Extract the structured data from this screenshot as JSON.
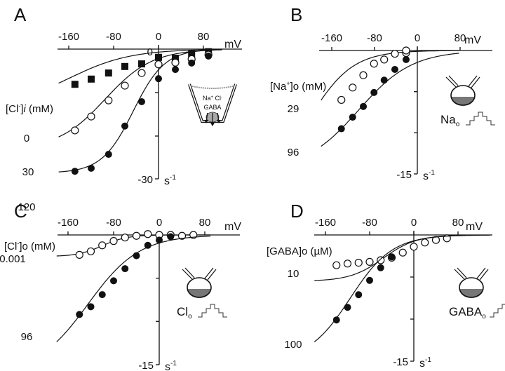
{
  "chart_data": [
    {
      "type": "scatter",
      "panel": "A",
      "title": "A",
      "xlabel": "mV",
      "ylabel": "s-1",
      "xticks": [
        -160,
        -80,
        0,
        80
      ],
      "xtick_labels": [
        "-160",
        "-80",
        "0",
        "80"
      ],
      "ylim": [
        -30,
        0
      ],
      "xlim": [
        -180,
        115
      ],
      "y_top_label": "0",
      "y_bottom_label": "-30",
      "y_unit_label": "s",
      "y_unit_sup": "-1",
      "conc_label": "[Cl",
      "conc_label_sup": "-",
      "conc_label_suffix": "]",
      "conc_label_sub": "i",
      "conc_label_unit": " (mM)",
      "inset": {
        "kind": "oocyte-well",
        "text_line1": "Na",
        "text_line1_sup": "+",
        "text_line1b": " Cl",
        "text_line1b_sup": "-",
        "text_line2": "GABA"
      },
      "series": [
        {
          "name": "0",
          "marker": "filled-square",
          "x": [
            -149,
            -120,
            -89,
            -60,
            -30,
            0,
            30,
            59,
            89
          ],
          "y": [
            -8.1,
            -6.9,
            -5.5,
            -4.0,
            -3.4,
            -1.9,
            -2.1,
            -1.1,
            -0.6
          ],
          "fit": {
            "imax": -13.5,
            "v_half": -160,
            "k": 55
          }
        },
        {
          "name": "30",
          "marker": "open-circle",
          "x": [
            -149,
            -120,
            -89,
            -60,
            -30,
            0,
            30,
            59,
            89
          ],
          "y": [
            -18.7,
            -15.5,
            -11.8,
            -8.4,
            -5.5,
            -3.5,
            -3.1,
            -2.3,
            -1.3
          ],
          "fit": {
            "imax": -23,
            "v_half": -95,
            "k": 42
          }
        },
        {
          "name": "120",
          "marker": "filled-circle",
          "x": [
            -149,
            -120,
            -89,
            -60,
            -30,
            0,
            30,
            59,
            89
          ],
          "y": [
            -28.1,
            -27.4,
            -24.2,
            -17.7,
            -12.1,
            -6.8,
            -4.7,
            -3.2,
            -1.6
          ],
          "fit": {
            "imax": -28.5,
            "v_half": -45,
            "k": 28
          }
        }
      ]
    },
    {
      "type": "scatter",
      "panel": "B",
      "title": "B",
      "xlabel": "mV",
      "ylabel": "s-1",
      "xticks": [
        -160,
        -80,
        0,
        80
      ],
      "xtick_labels": [
        "-160",
        "-80",
        "0",
        "80"
      ],
      "ylim": [
        -15,
        0
      ],
      "xlim": [
        -185,
        140
      ],
      "y_bottom_label": "-15",
      "y_unit_label": "s",
      "y_unit_sup": "-1",
      "conc_label": "[Na",
      "conc_label_sup": "+",
      "conc_label_suffix": "]o",
      "conc_label_sub": "",
      "conc_label_unit": " (mM)",
      "inset": {
        "kind": "oocyte-clamp",
        "text": "Na",
        "text_sub": "o"
      },
      "series": [
        {
          "name": "29",
          "marker": "open-circle",
          "x": [
            -142,
            -121,
            -101,
            -81,
            -62,
            -42,
            -21,
            -21
          ],
          "y": [
            -6.0,
            -4.5,
            -3.0,
            -1.6,
            -1.1,
            -0.4,
            -0.3,
            0.0
          ],
          "fit": {
            "imax": -16,
            "v_half": -200,
            "k": 40
          }
        },
        {
          "name": "96",
          "marker": "filled-circle",
          "x": [
            -142,
            -121,
            -101,
            -81,
            -62,
            -42,
            -21
          ],
          "y": [
            -9.5,
            -8.1,
            -6.8,
            -5.1,
            -3.6,
            -2.3,
            -1.1
          ],
          "fit": {
            "imax": -14.5,
            "v_half": -110,
            "k": 50
          }
        }
      ]
    },
    {
      "type": "scatter",
      "panel": "C",
      "title": "C",
      "xlabel": "mV",
      "ylabel": "s-1",
      "xticks": [
        -160,
        -80,
        0,
        80
      ],
      "xtick_labels": [
        "-160",
        "-80",
        "0",
        "80"
      ],
      "ylim": [
        -15,
        0
      ],
      "xlim": [
        -180,
        140
      ],
      "y_bottom_label": "-15",
      "y_unit_label": "s",
      "y_unit_sup": "-1",
      "conc_label": "[Cl",
      "conc_label_sup": "-",
      "conc_label_suffix": "]o",
      "conc_label_sub": "",
      "conc_label_unit": " (mM)",
      "inset": {
        "kind": "oocyte-clamp",
        "text": "Cl",
        "text_sub": "o"
      },
      "series": [
        {
          "name": "0.001",
          "marker": "open-circle",
          "x": [
            -140,
            -120,
            -100,
            -80,
            -60,
            -40,
            -20,
            0,
            20,
            40,
            60
          ],
          "y": [
            -2.3,
            -1.9,
            -1.2,
            -0.7,
            -0.3,
            -0.1,
            0.1,
            0.0,
            0.0,
            -0.1,
            0.0
          ],
          "fit": {
            "imax": -2.5,
            "v_half": -100,
            "k": 22
          }
        },
        {
          "name": "96",
          "marker": "filled-circle",
          "x": [
            -140,
            -120,
            -100,
            -80,
            -60,
            -40,
            -20,
            0,
            20
          ],
          "y": [
            -9.2,
            -8.3,
            -6.9,
            -5.3,
            -3.9,
            -2.4,
            -1.2,
            -0.6,
            -0.2
          ],
          "fit": {
            "imax": -16,
            "v_half": -125,
            "k": 45
          }
        }
      ]
    },
    {
      "type": "scatter",
      "panel": "D",
      "title": "D",
      "xlabel": "mV",
      "ylabel": "s-1",
      "xticks": [
        -160,
        -80,
        0,
        80
      ],
      "xtick_labels": [
        "-160",
        "-80",
        "0",
        "80"
      ],
      "ylim": [
        -15,
        0
      ],
      "xlim": [
        -180,
        145
      ],
      "y_bottom_label": "-15",
      "y_unit_label": "s",
      "y_unit_sup": "-1",
      "conc_label": "[GABA]o",
      "conc_label_sup": "",
      "conc_label_suffix": "",
      "conc_label_sub": "",
      "conc_label_unit": " (µM)",
      "inset": {
        "kind": "oocyte-clamp",
        "text": "GABA",
        "text_sub": "o"
      },
      "series": [
        {
          "name": "10",
          "marker": "open-circle",
          "x": [
            -140,
            -120,
            -100,
            -80,
            -60,
            -40,
            -20,
            0,
            20,
            40,
            60
          ],
          "y": [
            -3.6,
            -3.4,
            -3.3,
            -3.2,
            -3.0,
            -2.7,
            -2.1,
            -1.4,
            -0.9,
            -0.6,
            -0.4
          ],
          "fit": {
            "imax": -5.5,
            "v_half": -55,
            "k": 30
          }
        },
        {
          "name": "100",
          "marker": "filled-circle",
          "x": [
            -140,
            -120,
            -100,
            -80,
            -60,
            -40
          ],
          "y": [
            -10.1,
            -8.6,
            -7.1,
            -5.4,
            -3.9,
            -2.6
          ],
          "fit": {
            "imax": -15,
            "v_half": -115,
            "k": 38
          }
        }
      ]
    }
  ]
}
